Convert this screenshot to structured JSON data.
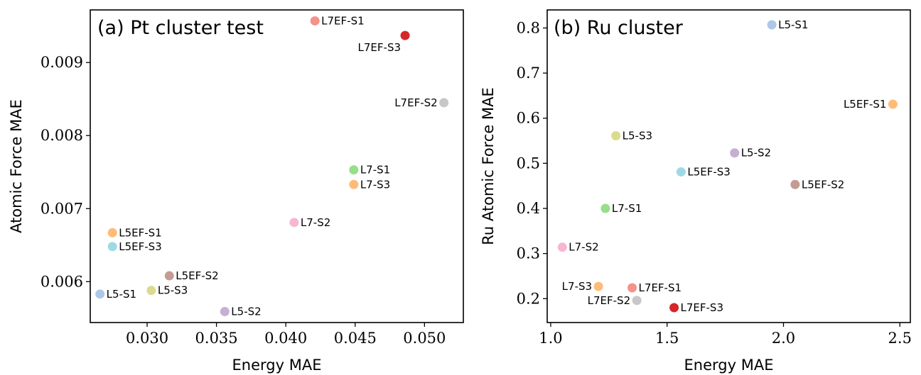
{
  "chart_data": [
    {
      "type": "scatter",
      "title": "(a) Pt cluster test",
      "xlabel": "Energy MAE",
      "ylabel": "Atomic Force MAE",
      "xlim": [
        0.0259,
        0.0528
      ],
      "ylim": [
        0.00544,
        0.00972
      ],
      "xticks": [
        0.03,
        0.035,
        0.04,
        0.045,
        0.05
      ],
      "xtick_labels": [
        "0.030",
        "0.035",
        "0.040",
        "0.045",
        "0.050"
      ],
      "yticks": [
        0.006,
        0.007,
        0.008,
        0.009
      ],
      "ytick_labels": [
        "0.006",
        "0.007",
        "0.008",
        "0.009"
      ],
      "grid": false,
      "points": [
        {
          "label": "L7EF-S1",
          "x": 0.0421,
          "y": 0.00957,
          "color": "#f4928b",
          "label_side": "right"
        },
        {
          "label": "L7EF-S3",
          "x": 0.0486,
          "y": 0.00937,
          "color": "#d62728",
          "label_side": "below-left"
        },
        {
          "label": "L7EF-S2",
          "x": 0.0514,
          "y": 0.00845,
          "color": "#c7c7c7",
          "label_side": "left"
        },
        {
          "label": "L7-S1",
          "x": 0.0449,
          "y": 0.00753,
          "color": "#98df8a",
          "label_side": "right"
        },
        {
          "label": "L7-S3",
          "x": 0.0449,
          "y": 0.00733,
          "color": "#ffbb78",
          "label_side": "right"
        },
        {
          "label": "L7-S2",
          "x": 0.0406,
          "y": 0.00681,
          "color": "#f7b6d2",
          "label_side": "right"
        },
        {
          "label": "L5EF-S1",
          "x": 0.0275,
          "y": 0.00667,
          "color": "#ffbb78",
          "label_side": "right"
        },
        {
          "label": "L5EF-S3",
          "x": 0.0275,
          "y": 0.00648,
          "color": "#9edae5",
          "label_side": "right"
        },
        {
          "label": "L5EF-S2",
          "x": 0.0316,
          "y": 0.00608,
          "color": "#c49c94",
          "label_side": "right"
        },
        {
          "label": "L5-S1",
          "x": 0.0266,
          "y": 0.00583,
          "color": "#aec7e8",
          "label_side": "right"
        },
        {
          "label": "L5-S3",
          "x": 0.0303,
          "y": 0.00588,
          "color": "#dbdb8d",
          "label_side": "right"
        },
        {
          "label": "L5-S2",
          "x": 0.0356,
          "y": 0.00559,
          "color": "#c5b0d5",
          "label_side": "right"
        }
      ]
    },
    {
      "type": "scatter",
      "title": "(b) Ru cluster",
      "xlabel": "Energy MAE",
      "ylabel": "Ru Atomic Force MAE",
      "xlim": [
        0.985,
        2.545
      ],
      "ylim": [
        0.147,
        0.84
      ],
      "xticks": [
        1.0,
        1.5,
        2.0,
        2.5
      ],
      "xtick_labels": [
        "1.0",
        "1.5",
        "2.0",
        "2.5"
      ],
      "yticks": [
        0.2,
        0.3,
        0.4,
        0.5,
        0.6,
        0.7,
        0.8
      ],
      "ytick_labels": [
        "0.2",
        "0.3",
        "0.4",
        "0.5",
        "0.6",
        "0.7",
        "0.8"
      ],
      "grid": false,
      "points": [
        {
          "label": "L5-S1",
          "x": 1.95,
          "y": 0.807,
          "color": "#aec7e8",
          "label_side": "right"
        },
        {
          "label": "L5EF-S1",
          "x": 2.47,
          "y": 0.631,
          "color": "#ffbb78",
          "label_side": "left"
        },
        {
          "label": "L5-S3",
          "x": 1.28,
          "y": 0.561,
          "color": "#dbdb8d",
          "label_side": "right"
        },
        {
          "label": "L5-S2",
          "x": 1.79,
          "y": 0.523,
          "color": "#c5b0d5",
          "label_side": "right"
        },
        {
          "label": "L5EF-S3",
          "x": 1.56,
          "y": 0.481,
          "color": "#9edae5",
          "label_side": "right"
        },
        {
          "label": "L5EF-S2",
          "x": 2.05,
          "y": 0.453,
          "color": "#c49c94",
          "label_side": "right"
        },
        {
          "label": "L7-S1",
          "x": 1.235,
          "y": 0.4,
          "color": "#98df8a",
          "label_side": "right"
        },
        {
          "label": "L7-S2",
          "x": 1.05,
          "y": 0.314,
          "color": "#f7b6d2",
          "label_side": "right"
        },
        {
          "label": "L7-S3",
          "x": 1.205,
          "y": 0.227,
          "color": "#ffbb78",
          "label_side": "left"
        },
        {
          "label": "L7EF-S1",
          "x": 1.35,
          "y": 0.224,
          "color": "#f4928b",
          "label_side": "right"
        },
        {
          "label": "L7EF-S2",
          "x": 1.37,
          "y": 0.196,
          "color": "#c7c7c7",
          "label_side": "left"
        },
        {
          "label": "L7EF-S3",
          "x": 1.53,
          "y": 0.18,
          "color": "#d62728",
          "label_side": "right"
        }
      ]
    }
  ]
}
